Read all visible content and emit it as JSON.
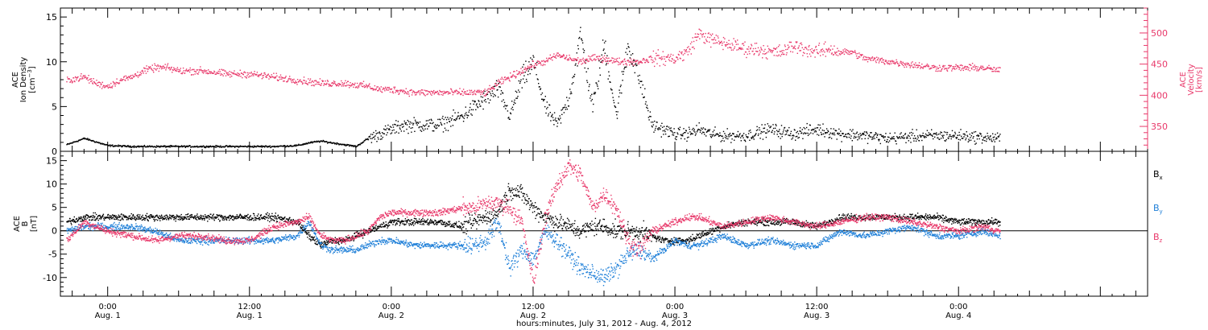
{
  "chart_data": [
    {
      "type": "scatter",
      "panel": "top",
      "left_axis": {
        "label_lines": [
          "ACE",
          "Ion Density"
        ],
        "unit_text": "[cm",
        "unit_sup": "−3",
        "unit_tail": "]",
        "ylim": [
          0,
          16
        ],
        "ticks": [
          "0",
          "5",
          "10",
          "15"
        ],
        "color": "#000000"
      },
      "right_axis": {
        "label_lines": [
          "ACE",
          "Velocity",
          "[km/s]"
        ],
        "ylim": [
          310,
          540
        ],
        "ticks": [
          "350",
          "400",
          "450",
          "500"
        ],
        "color": "#e8386a"
      },
      "series": [
        {
          "key": "density",
          "color": "#000000",
          "axis": "left",
          "x_hours": [
            -3.5,
            -2,
            0,
            2,
            4,
            6,
            8,
            10,
            12,
            14,
            16,
            17,
            18,
            19,
            20,
            21,
            22,
            23,
            24,
            25,
            26,
            27,
            28,
            29,
            30,
            31,
            32,
            33,
            34,
            35,
            36,
            37,
            38,
            39,
            40,
            41,
            42,
            43,
            44,
            45,
            46,
            47,
            48,
            49,
            50,
            51,
            52,
            54,
            56,
            58,
            60,
            62,
            64,
            66,
            68,
            70,
            72,
            74,
            75.5
          ],
          "values": [
            0.8,
            1.5,
            0.7,
            0.6,
            0.6,
            0.6,
            0.6,
            0.6,
            0.6,
            0.6,
            0.7,
            1.0,
            1.2,
            1.0,
            0.8,
            0.6,
            1.5,
            2.0,
            2.5,
            3.0,
            3.0,
            3.0,
            3.0,
            3.5,
            4.0,
            5.0,
            6.0,
            7.0,
            4.0,
            8.0,
            10.0,
            5.0,
            3.0,
            6.0,
            13.0,
            5.0,
            12.0,
            4.0,
            12.0,
            8.0,
            3.0,
            2.5,
            2.0,
            2.0,
            2.5,
            2.0,
            1.8,
            1.8,
            2.5,
            2.0,
            2.5,
            2.0,
            1.8,
            1.5,
            1.7,
            1.8,
            1.8,
            1.6,
            1.5
          ]
        },
        {
          "key": "velocity",
          "color": "#e8386a",
          "axis": "right",
          "x_hours": [
            -3.5,
            -2,
            -1,
            0,
            1,
            2,
            3,
            4,
            5,
            6,
            8,
            10,
            12,
            14,
            16,
            18,
            20,
            22,
            23,
            24,
            26,
            28,
            30,
            32,
            33,
            34,
            35,
            36,
            37,
            38,
            39,
            40,
            41,
            42,
            43,
            44,
            45,
            46,
            47,
            48,
            49,
            50,
            51,
            52,
            53,
            54,
            55,
            56,
            57,
            58,
            59,
            60,
            61,
            62,
            63,
            64,
            66,
            68,
            70,
            72,
            74,
            75.5
          ],
          "values": [
            425,
            430,
            420,
            415,
            425,
            430,
            440,
            445,
            445,
            440,
            440,
            435,
            435,
            430,
            425,
            420,
            420,
            415,
            410,
            410,
            405,
            405,
            405,
            405,
            420,
            430,
            440,
            450,
            455,
            465,
            460,
            455,
            460,
            460,
            455,
            455,
            455,
            460,
            460,
            460,
            470,
            500,
            490,
            485,
            480,
            475,
            475,
            470,
            470,
            480,
            475,
            470,
            475,
            470,
            470,
            460,
            455,
            450,
            445,
            445,
            445,
            440
          ]
        }
      ]
    },
    {
      "type": "scatter",
      "panel": "bottom",
      "left_axis": {
        "label_lines": [
          "ACE",
          "B"
        ],
        "unit_text": "[nT]",
        "ylim": [
          -14,
          17
        ],
        "ticks": [
          "-10",
          "-5",
          "0",
          "5",
          "10",
          "15"
        ],
        "color": "#000000"
      },
      "legend": [
        {
          "main": "B",
          "sub": "x",
          "color": "#000000"
        },
        {
          "main": "B",
          "sub": "y",
          "color": "#1e7fd8"
        },
        {
          "main": "B",
          "sub": "z",
          "color": "#e8386a"
        }
      ],
      "series": [
        {
          "key": "bx",
          "color": "#000000",
          "x_hours": [
            -3.5,
            -2,
            0,
            2,
            4,
            6,
            8,
            10,
            12,
            14,
            16,
            17,
            18,
            19,
            20,
            21,
            22,
            23,
            24,
            26,
            28,
            30,
            31,
            32,
            33,
            34,
            35,
            36,
            37,
            38,
            39,
            40,
            41,
            42,
            43,
            44,
            45,
            46,
            47,
            48,
            49,
            50,
            51,
            52,
            54,
            56,
            58,
            60,
            62,
            64,
            66,
            68,
            70,
            72,
            74,
            75.5
          ],
          "values": [
            2,
            3,
            3,
            3,
            3,
            3,
            3,
            3,
            3,
            3,
            2,
            -1,
            -3,
            -2,
            -2,
            -1,
            0,
            1,
            2,
            2,
            2,
            1,
            2,
            3,
            4,
            9,
            8,
            5,
            3,
            2,
            1,
            0,
            1,
            1,
            0,
            0,
            0,
            -1,
            -2,
            -2,
            -2,
            -1,
            0,
            1,
            2,
            2,
            2,
            1,
            3,
            3,
            3,
            3,
            3,
            2,
            2,
            2
          ]
        },
        {
          "key": "by",
          "color": "#1e7fd8",
          "x_hours": [
            -3.5,
            -2,
            0,
            2,
            4,
            6,
            8,
            10,
            12,
            14,
            16,
            17,
            18,
            19,
            20,
            21,
            22,
            23,
            24,
            26,
            28,
            30,
            31,
            32,
            33,
            34,
            35,
            36,
            37,
            38,
            39,
            40,
            41,
            42,
            43,
            44,
            45,
            46,
            47,
            48,
            49,
            50,
            51,
            52,
            54,
            56,
            58,
            60,
            62,
            64,
            66,
            68,
            70,
            72,
            74,
            75.5
          ],
          "values": [
            0,
            1,
            1,
            1,
            0,
            -2,
            -2,
            -2,
            -2,
            -2,
            -1,
            2,
            -3,
            -4,
            -4,
            -4,
            -3,
            -2,
            -2,
            -3,
            -3,
            -3,
            -3,
            -2,
            2,
            -8,
            -4,
            -6,
            0,
            -2,
            -5,
            -8,
            -9,
            -10,
            -8,
            -5,
            -4,
            -6,
            -4,
            -2,
            -3,
            -3,
            -2,
            -1,
            -3,
            -2,
            -3,
            -3,
            0,
            -1,
            0,
            1,
            -1,
            -1,
            0,
            -1
          ]
        },
        {
          "key": "bz",
          "color": "#e8386a",
          "x_hours": [
            -3.5,
            -2,
            0,
            2,
            4,
            6,
            8,
            10,
            12,
            14,
            16,
            17,
            18,
            19,
            20,
            21,
            22,
            23,
            24,
            26,
            28,
            30,
            31,
            32,
            33,
            34,
            35,
            36,
            37,
            38,
            39,
            40,
            41,
            42,
            43,
            44,
            45,
            46,
            47,
            48,
            49,
            50,
            51,
            52,
            54,
            56,
            58,
            60,
            62,
            64,
            66,
            68,
            70,
            72,
            74,
            75.5
          ],
          "values": [
            -2,
            2,
            0,
            -1,
            -2,
            -1,
            -1,
            -2,
            -2,
            1,
            2,
            3,
            -1,
            -2,
            -2,
            -1,
            0,
            3,
            4,
            4,
            4,
            5,
            5,
            6,
            6,
            5,
            2,
            -11,
            3,
            10,
            14,
            12,
            5,
            8,
            5,
            -2,
            -4,
            0,
            1,
            2,
            3,
            3,
            2,
            1,
            2,
            3,
            2,
            1,
            2,
            3,
            3,
            2,
            1,
            0,
            1,
            0
          ]
        }
      ]
    }
  ],
  "x_axis": {
    "xlim_hours": [
      -4,
      88
    ],
    "major_ticks": [
      {
        "h": 0,
        "time": "0:00",
        "date": "Aug. 1"
      },
      {
        "h": 12,
        "time": "12:00",
        "date": "Aug. 1"
      },
      {
        "h": 24,
        "time": "0:00",
        "date": "Aug. 2"
      },
      {
        "h": 36,
        "time": "12:00",
        "date": "Aug. 2"
      },
      {
        "h": 48,
        "time": "0:00",
        "date": "Aug. 3"
      },
      {
        "h": 60,
        "time": "12:00",
        "date": "Aug. 3"
      },
      {
        "h": 72,
        "time": "0:00",
        "date": "Aug. 4"
      }
    ],
    "label": "hours:minutes, July 31, 2012 - Aug.  4, 2012"
  }
}
